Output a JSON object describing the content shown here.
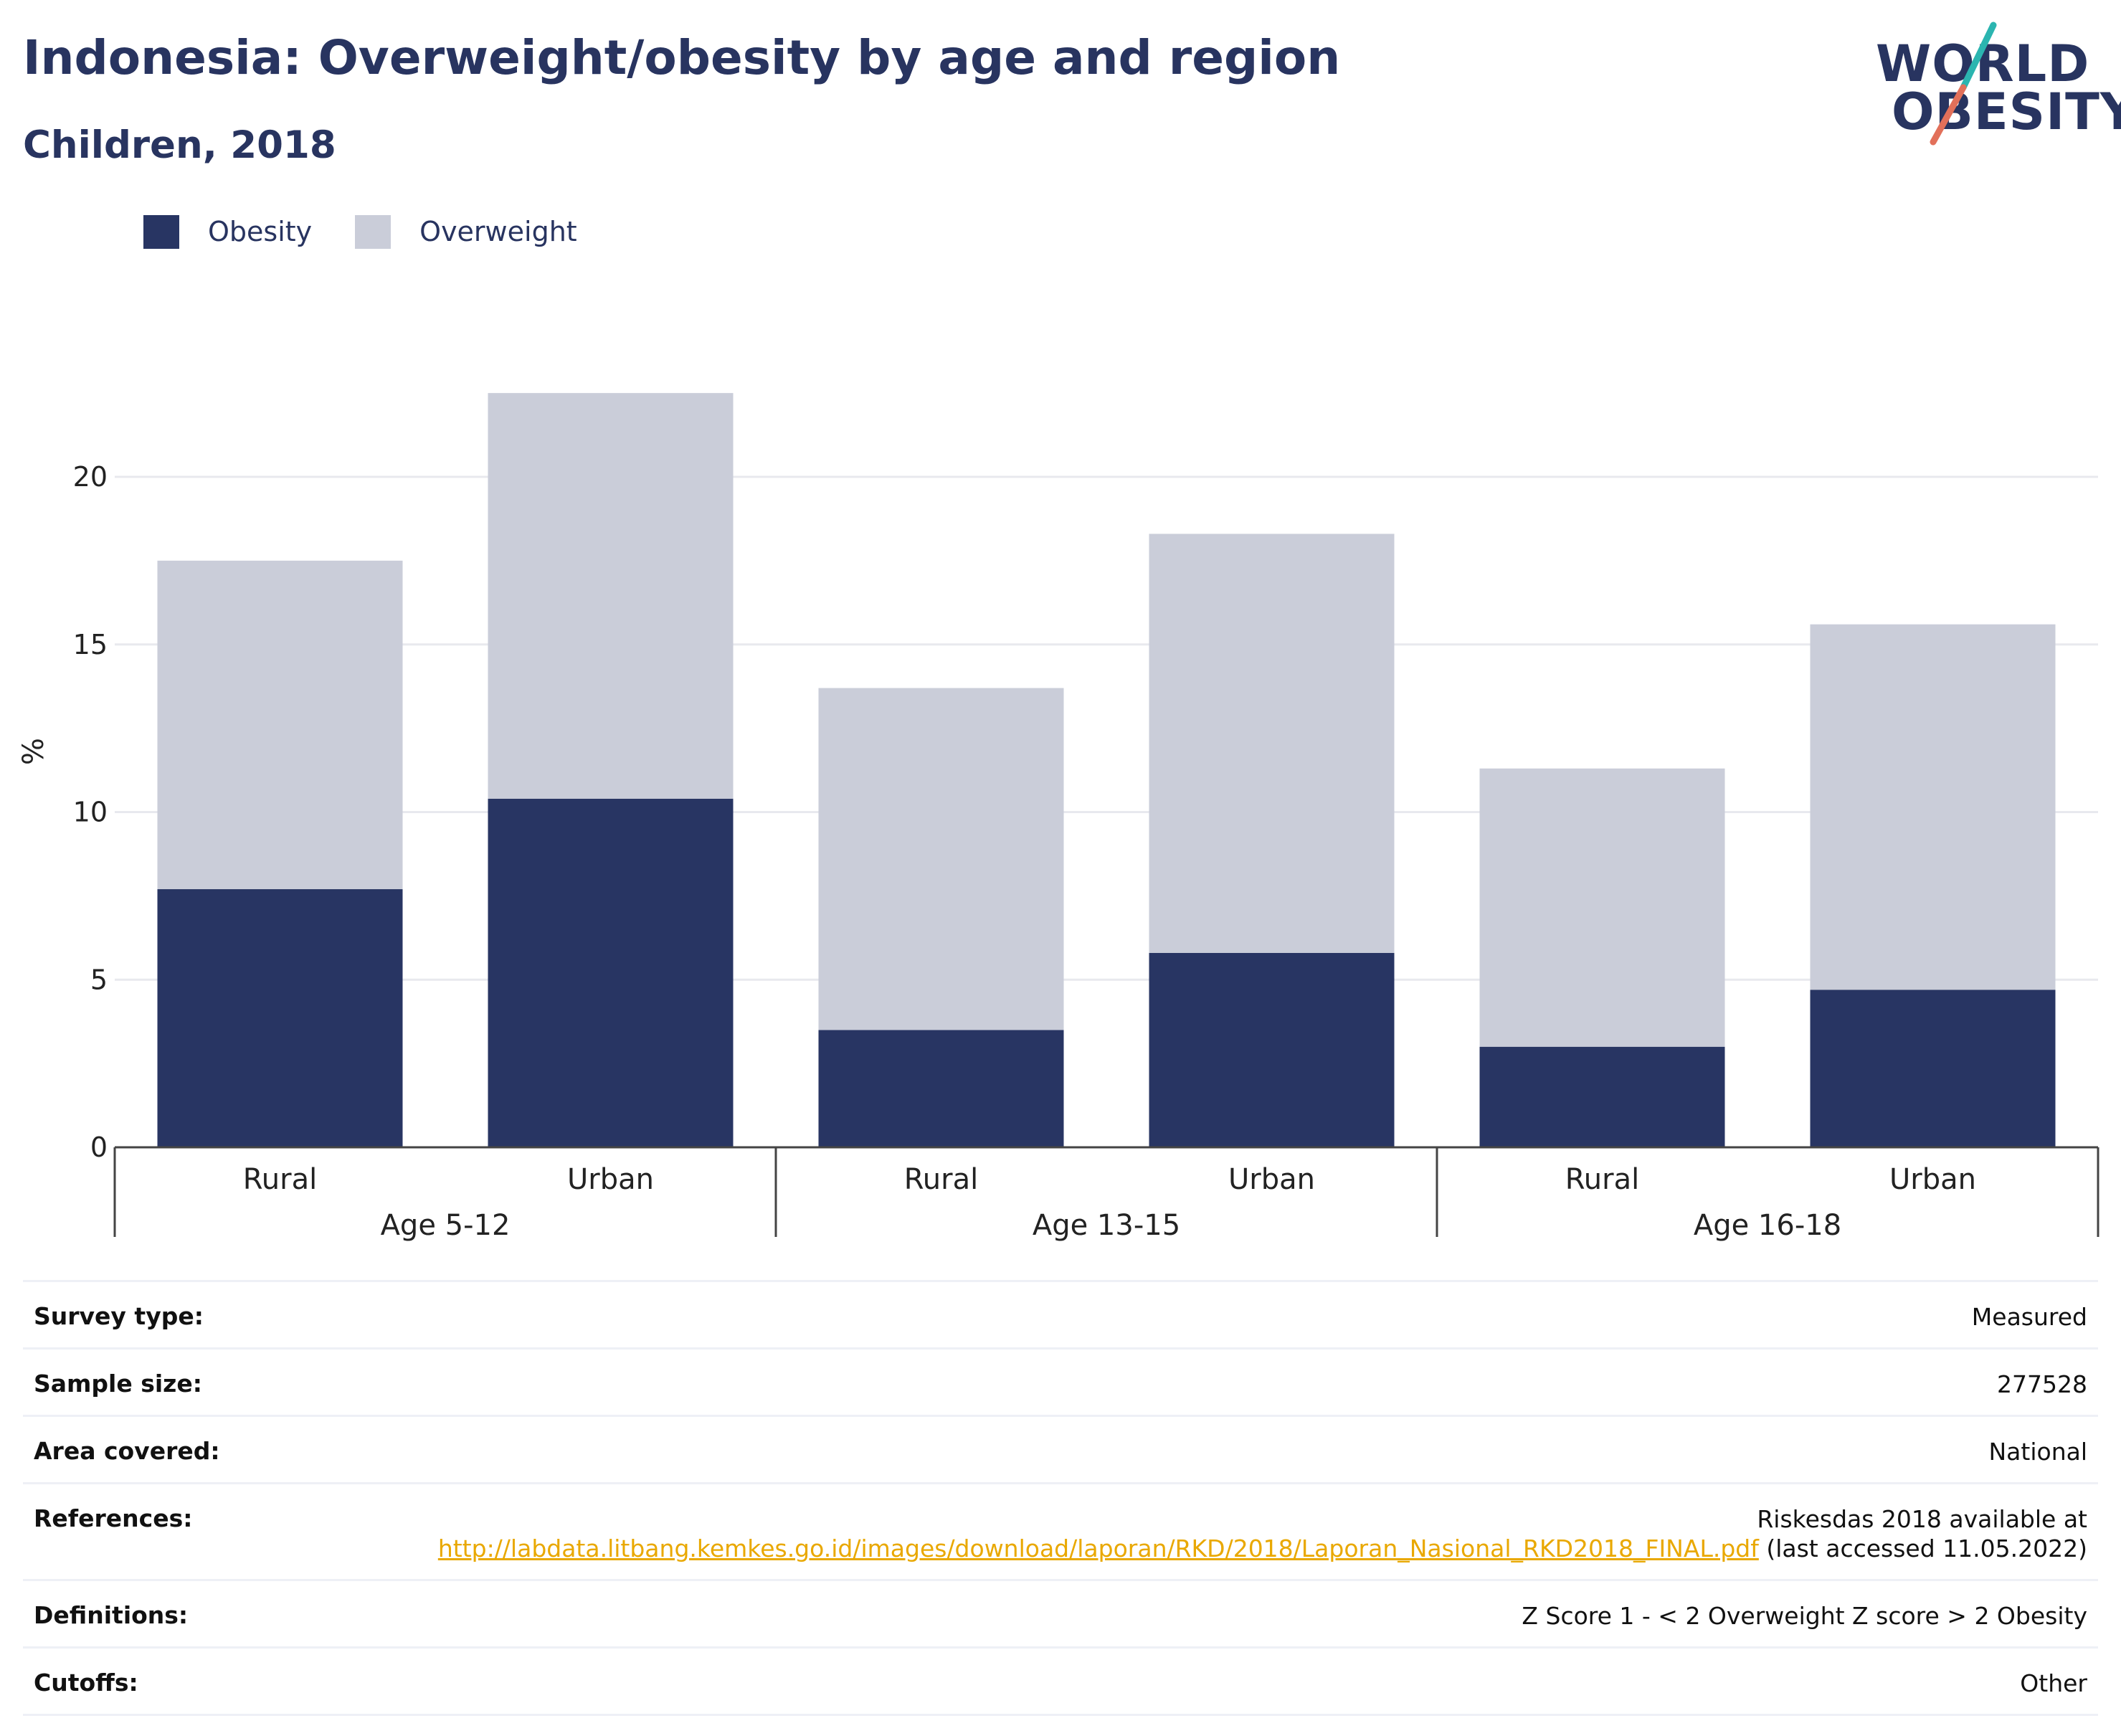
{
  "header": {
    "title": "Indonesia: Overweight/obesity by age and region",
    "subtitle": "Children, 2018"
  },
  "logo": {
    "line1": "WORLD",
    "line2": "OBESITY",
    "accent_teal": "#2bb5b0",
    "accent_coral": "#e2705a"
  },
  "legend": [
    {
      "label": "Obesity",
      "color": "#283563"
    },
    {
      "label": "Overweight",
      "color": "#cacdd9"
    }
  ],
  "chart_data": {
    "type": "bar",
    "stacked": true,
    "ylabel": "%",
    "ylim": [
      0,
      23
    ],
    "yticks": [
      "0",
      "5",
      "10",
      "15",
      "20"
    ],
    "grid": true,
    "legend_position": "top-left",
    "categories": [
      "Rural",
      "Urban",
      "Rural",
      "Urban",
      "Rural",
      "Urban"
    ],
    "groups": [
      "Age 5-12",
      "Age 13-15",
      "Age 16-18"
    ],
    "series": [
      {
        "name": "Obesity",
        "color": "#283563",
        "values": [
          7.7,
          10.4,
          3.5,
          5.8,
          3.0,
          4.7
        ]
      },
      {
        "name": "Overweight",
        "color": "#cacdd9",
        "values": [
          9.8,
          12.1,
          10.2,
          12.5,
          8.3,
          10.9
        ]
      }
    ]
  },
  "meta": [
    {
      "label": "Survey type:",
      "value": "Measured"
    },
    {
      "label": "Sample size:",
      "value": "277528"
    },
    {
      "label": "Area covered:",
      "value": "National"
    },
    {
      "label": "References:",
      "value_prefix": "Riskesdas 2018 available at",
      "link": "http://labdata.litbang.kemkes.go.id/images/download/laporan/RKD/2018/Laporan_Nasional_RKD2018_FINAL.pdf",
      "value_suffix": "(last accessed 11.05.2022)"
    },
    {
      "label": "Definitions:",
      "value": "Z Score 1 - < 2 Overweight Z score > 2 Obesity"
    },
    {
      "label": "Cutoffs:",
      "value": "Other"
    }
  ]
}
